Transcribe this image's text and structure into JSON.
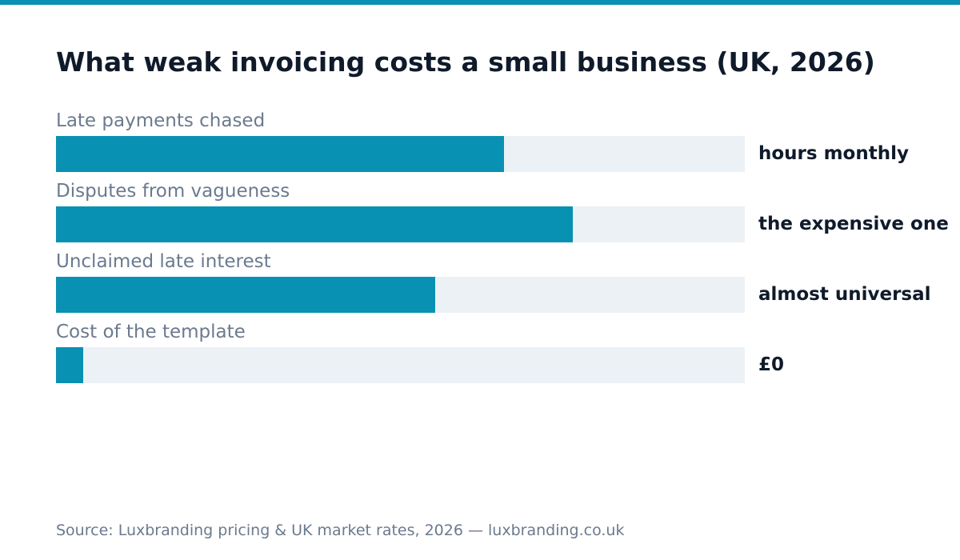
{
  "colors": {
    "accent": "#0891b2",
    "track": "#ecf1f6",
    "title": "#0f1a2a",
    "muted": "#6b7a8e"
  },
  "chart_data": {
    "type": "bar",
    "orientation": "horizontal",
    "title": "What weak invoicing costs a small business (UK, 2026)",
    "categories": [
      "Late payments chased",
      "Disputes from vagueness",
      "Unclaimed late interest",
      "Cost of the template"
    ],
    "values": [
      0.65,
      0.75,
      0.55,
      0.04
    ],
    "value_labels": [
      "hours monthly",
      "the expensive one",
      "almost universal",
      "£0"
    ],
    "xlim": [
      0,
      1
    ],
    "grid": false,
    "legend": "none"
  },
  "source": "Source: Luxbranding pricing & UK market rates, 2026 — luxbranding.co.uk"
}
